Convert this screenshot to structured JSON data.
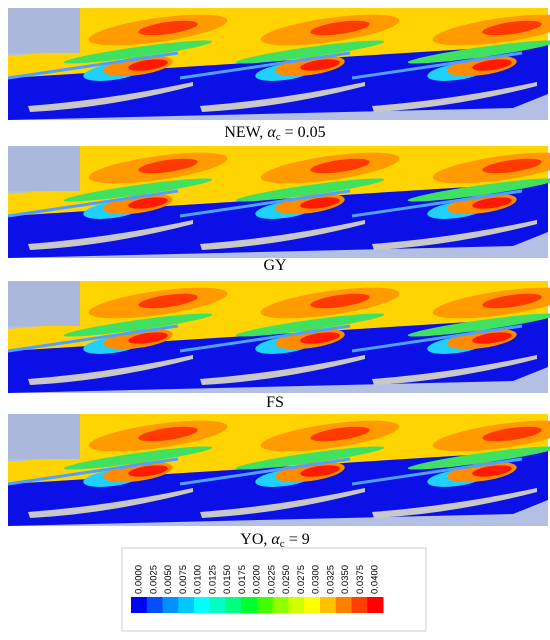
{
  "panels": [
    {
      "caption": {
        "text": "NEW, ",
        "symbol": "α",
        "subscript": "c",
        "rest": " = 0.05"
      }
    },
    {
      "caption": {
        "text": "GY"
      }
    },
    {
      "caption": {
        "text": "FS"
      }
    },
    {
      "caption": {
        "text": "YO, ",
        "symbol": "α",
        "subscript": "c",
        "rest": " = 9"
      }
    }
  ],
  "colorbar": {
    "ticks": [
      {
        "value": 0,
        "label": "0.0000"
      },
      {
        "value": 0.0025,
        "label": "0.0025"
      },
      {
        "value": 0.005,
        "label": "0.0050"
      },
      {
        "value": 0.0075,
        "label": "0.0075"
      },
      {
        "value": 0.01,
        "label": "0.0100"
      },
      {
        "value": 0.0125,
        "label": "0.0125"
      },
      {
        "value": 0.015,
        "label": "0.0150"
      },
      {
        "value": 0.0175,
        "label": "0.0175"
      },
      {
        "value": 0.02,
        "label": "0.0200"
      },
      {
        "value": 0.0225,
        "label": "0.0225"
      },
      {
        "value": 0.025,
        "label": "0.0250"
      },
      {
        "value": 0.0275,
        "label": "0.0275"
      },
      {
        "value": 0.03,
        "label": "0.0300"
      },
      {
        "value": 0.0325,
        "label": "0.0325"
      },
      {
        "value": 0.035,
        "label": "0.0350"
      },
      {
        "value": 0.0375,
        "label": "0.0375"
      },
      {
        "value": 0.04,
        "label": "0.0400"
      }
    ],
    "colors": [
      "#0000ff",
      "#0050ff",
      "#0090ff",
      "#00c8ff",
      "#00ffff",
      "#00ffc0",
      "#00ff80",
      "#00ff30",
      "#40ff00",
      "#90ff00",
      "#d0ff00",
      "#ffff00",
      "#ffc000",
      "#ff8000",
      "#ff4000",
      "#ff0000"
    ]
  }
}
